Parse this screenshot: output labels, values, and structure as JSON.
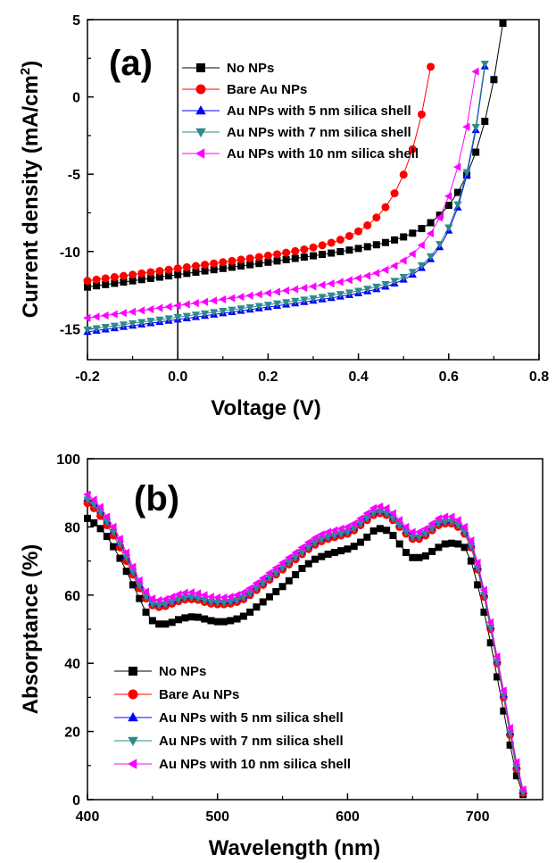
{
  "chart_data": [
    {
      "panel_label": "(a)",
      "type": "line",
      "xlabel": "Voltage (V)",
      "ylabel": "Current density (mA/cm²)",
      "ylabel_parts": {
        "main": "Current density (mA/cm",
        "sup": "2",
        "close": ")"
      },
      "xlim": [
        -0.2,
        0.8
      ],
      "ylim": [
        -17,
        5
      ],
      "x_ticks": [
        -0.2,
        0.0,
        0.2,
        0.4,
        0.6,
        0.8
      ],
      "x_tick_labels": [
        "-0.2",
        "0.0",
        "0.2",
        "0.4",
        "0.6",
        "0.8"
      ],
      "y_ticks": [
        5,
        0,
        -5,
        -10,
        -15
      ],
      "y_tick_labels": [
        "5",
        "0",
        "-5",
        "-10",
        "-15"
      ],
      "reference_line_x": 0.0,
      "legend_position": "top-center",
      "grid": false,
      "series": [
        {
          "name": "No NPs",
          "color": "#000000",
          "marker": "square",
          "jsc": -12.3,
          "slope": 4.0,
          "voc": 0.77,
          "iv_a": 0.00019,
          "iv_n": 0.0645,
          "x_end": 0.775
        },
        {
          "name": "Bare Au NPs",
          "color": "#ff0000",
          "marker": "circle",
          "jsc": -11.9,
          "slope": 4.0,
          "voc": 0.715,
          "iv_a": 0.0012,
          "iv_n": 0.0615,
          "x_end": 0.78
        },
        {
          "name": "Au NPs with 5 nm silica shell",
          "color": "#0000ff",
          "marker": "triangle-up",
          "jsc": -15.2,
          "slope": 4.0,
          "voc": 0.77,
          "iv_a": 9e-05,
          "iv_n": 0.057,
          "x_end": 0.8
        },
        {
          "name": "Au NPs with 7 nm silica shell",
          "color": "#2e8b8b",
          "marker": "triangle-down",
          "jsc": -15.05,
          "slope": 4.0,
          "voc": 0.77,
          "iv_a": 0.0001,
          "iv_n": 0.0575,
          "x_end": 0.8
        },
        {
          "name": "Au NPs with 10 nm silica shell",
          "color": "#ff00ff",
          "marker": "triangle-left",
          "jsc": -14.3,
          "slope": 4.0,
          "voc": 0.77,
          "iv_a": 0.00025,
          "iv_n": 0.061,
          "x_end": 0.8
        }
      ]
    },
    {
      "panel_label": "(b)",
      "type": "line",
      "xlabel": "Wavelength (nm)",
      "ylabel": "Absorptance (%)",
      "xlim": [
        400,
        750
      ],
      "ylim": [
        0,
        100
      ],
      "x_ticks": [
        400,
        500,
        600,
        700
      ],
      "x_tick_labels": [
        "400",
        "500",
        "600",
        "700"
      ],
      "y_ticks": [
        0,
        20,
        40,
        60,
        80,
        100
      ],
      "y_tick_labels": [
        "0",
        "20",
        "40",
        "60",
        "80",
        "100"
      ],
      "legend_position": "bottom-left",
      "grid": false,
      "x": [
        400,
        405,
        410,
        415,
        420,
        425,
        430,
        435,
        440,
        445,
        450,
        455,
        460,
        465,
        470,
        475,
        480,
        485,
        490,
        495,
        500,
        505,
        510,
        515,
        520,
        525,
        530,
        535,
        540,
        545,
        550,
        555,
        560,
        565,
        570,
        575,
        580,
        585,
        590,
        595,
        600,
        605,
        610,
        615,
        620,
        625,
        630,
        635,
        640,
        645,
        650,
        655,
        660,
        665,
        670,
        675,
        680,
        685,
        690,
        695,
        700,
        705,
        710,
        715,
        720,
        725,
        730,
        735
      ],
      "series": [
        {
          "name": "No NPs",
          "color": "#000000",
          "marker": "square",
          "values": [
            82.5,
            81.2,
            79.5,
            77.2,
            74.2,
            70.8,
            67.0,
            63.0,
            59.0,
            55.0,
            52.5,
            51.5,
            51.5,
            52.0,
            52.8,
            53.3,
            53.6,
            53.5,
            53.0,
            52.5,
            52.2,
            52.2,
            52.5,
            53.0,
            53.8,
            55.0,
            56.5,
            58.0,
            59.5,
            61.0,
            62.5,
            64.2,
            66.0,
            67.8,
            69.2,
            70.5,
            71.3,
            72.0,
            72.5,
            73.0,
            73.5,
            74.3,
            75.5,
            77.0,
            78.8,
            79.5,
            79.0,
            77.5,
            75.0,
            72.5,
            71.0,
            71.0,
            71.5,
            72.8,
            74.0,
            75.0,
            75.2,
            75.0,
            74.0,
            70.0,
            63.0,
            55.0,
            46.0,
            36.0,
            26.0,
            16.0,
            7.0,
            1.5
          ]
        },
        {
          "name": "Bare Au NPs",
          "color": "#ff0000",
          "marker": "circle",
          "values": [
            87.0,
            85.5,
            83.2,
            80.5,
            77.5,
            74.0,
            70.0,
            66.0,
            62.0,
            59.0,
            57.0,
            56.5,
            56.8,
            57.5,
            58.2,
            58.7,
            58.8,
            58.6,
            58.0,
            57.5,
            57.3,
            57.3,
            57.5,
            58.0,
            58.8,
            60.0,
            61.5,
            63.0,
            64.5,
            66.0,
            67.5,
            69.0,
            70.5,
            72.0,
            73.5,
            74.8,
            75.8,
            76.5,
            77.0,
            77.5,
            78.0,
            79.0,
            80.5,
            82.0,
            83.5,
            84.0,
            83.5,
            82.0,
            80.0,
            78.0,
            76.5,
            76.5,
            77.5,
            79.0,
            80.5,
            81.0,
            81.0,
            80.0,
            78.0,
            74.0,
            67.5,
            59.5,
            50.0,
            40.0,
            30.0,
            19.0,
            9.0,
            2.0
          ]
        },
        {
          "name": "Au NPs with 5 nm silica shell",
          "color": "#0000ff",
          "marker": "triangle-up",
          "values": [
            88.5,
            87.0,
            84.8,
            82.0,
            79.0,
            75.5,
            71.5,
            67.3,
            63.3,
            60.0,
            58.0,
            57.5,
            57.8,
            58.5,
            59.2,
            59.7,
            59.8,
            59.5,
            59.0,
            58.5,
            58.3,
            58.3,
            58.5,
            59.0,
            59.8,
            61.0,
            62.5,
            64.0,
            65.5,
            67.0,
            68.5,
            70.0,
            71.5,
            73.0,
            74.5,
            75.8,
            76.8,
            77.5,
            78.0,
            78.5,
            79.0,
            80.0,
            81.5,
            83.0,
            84.5,
            85.0,
            84.5,
            83.0,
            81.0,
            79.0,
            77.5,
            77.5,
            78.5,
            80.0,
            81.5,
            82.0,
            82.0,
            81.0,
            79.0,
            75.0,
            68.5,
            60.5,
            51.0,
            41.0,
            31.0,
            20.0,
            10.0,
            2.5
          ]
        },
        {
          "name": "Au NPs with 7 nm silica shell",
          "color": "#2e8b8b",
          "marker": "triangle-down",
          "values": [
            88.0,
            86.5,
            84.3,
            81.5,
            78.5,
            75.0,
            71.0,
            66.8,
            62.8,
            59.5,
            57.5,
            57.0,
            57.3,
            58.0,
            58.7,
            59.2,
            59.3,
            59.0,
            58.5,
            58.0,
            57.8,
            57.8,
            58.0,
            58.5,
            59.3,
            60.5,
            62.0,
            63.5,
            65.0,
            66.5,
            68.0,
            69.5,
            71.0,
            72.5,
            74.0,
            75.3,
            76.3,
            77.0,
            77.5,
            78.0,
            78.5,
            79.5,
            81.0,
            82.5,
            84.0,
            84.5,
            84.0,
            82.5,
            80.5,
            78.5,
            77.0,
            77.0,
            78.0,
            79.5,
            81.0,
            81.5,
            81.5,
            80.5,
            78.5,
            74.5,
            68.0,
            60.0,
            50.5,
            40.5,
            30.5,
            19.5,
            9.5,
            2.2
          ]
        },
        {
          "name": "Au NPs with 10 nm silica shell",
          "color": "#ff00ff",
          "marker": "triangle-left",
          "values": [
            89.5,
            88.0,
            85.8,
            83.0,
            80.0,
            76.5,
            72.5,
            68.3,
            64.3,
            61.0,
            59.0,
            58.5,
            58.8,
            59.5,
            60.2,
            60.7,
            60.8,
            60.5,
            60.0,
            59.5,
            59.3,
            59.3,
            59.5,
            60.0,
            60.8,
            62.0,
            63.5,
            65.0,
            66.5,
            68.0,
            69.5,
            71.0,
            72.5,
            74.0,
            75.5,
            76.8,
            77.8,
            78.5,
            79.0,
            79.5,
            80.0,
            81.0,
            82.5,
            84.0,
            85.5,
            86.0,
            85.5,
            84.0,
            82.0,
            80.0,
            78.5,
            78.5,
            79.5,
            81.0,
            82.5,
            83.0,
            83.0,
            82.0,
            80.0,
            76.0,
            69.5,
            61.5,
            52.0,
            42.0,
            32.0,
            21.0,
            11.0,
            3.0
          ]
        }
      ]
    }
  ]
}
